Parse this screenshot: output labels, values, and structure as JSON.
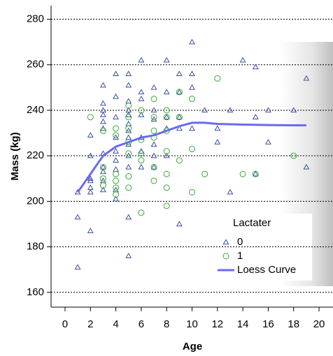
{
  "chart_data": {
    "type": "scatter",
    "x_label": "Age",
    "y_label": "Mass (kg)",
    "legend_title": "Lactater",
    "xlim": [
      -1.1,
      21.1
    ],
    "ylim": [
      153.5,
      286
    ],
    "xticks": [
      0,
      2,
      4,
      6,
      8,
      10,
      12,
      14,
      16,
      18,
      20
    ],
    "yticks": [
      160,
      180,
      200,
      220,
      240,
      260,
      280
    ],
    "grid": true,
    "series": [
      {
        "name": "0",
        "marker": "triangle",
        "color": "#3d4fa3",
        "x": [
          1,
          1,
          1,
          2,
          2,
          2,
          2,
          2,
          2,
          2,
          3,
          3,
          3,
          3,
          3,
          3,
          3,
          3,
          3,
          3,
          3,
          4,
          4,
          4,
          4,
          4,
          4,
          4,
          4,
          4,
          5,
          5,
          5,
          5,
          5,
          5,
          5,
          5,
          5,
          5,
          5,
          5,
          5,
          6,
          6,
          6,
          6,
          6,
          6,
          6,
          7,
          7,
          7,
          7,
          7,
          7,
          8,
          8,
          8,
          8,
          8,
          9,
          9,
          9,
          9,
          9,
          10,
          10,
          10,
          10,
          11,
          12,
          12,
          13,
          13,
          14,
          15,
          15,
          15,
          16,
          16,
          18,
          19,
          19
        ],
        "values": [
          171,
          193,
          204,
          187,
          204,
          206,
          209,
          210,
          220,
          229,
          205,
          209,
          213,
          215,
          221,
          232,
          235,
          238,
          240,
          243,
          251,
          201,
          205,
          214,
          218,
          222,
          228,
          237,
          246,
          256,
          176,
          193,
          215,
          220,
          225,
          228,
          231,
          234,
          238,
          240,
          244,
          251,
          256,
          215,
          222,
          228,
          238,
          245,
          248,
          262,
          215,
          220,
          225,
          236,
          240,
          250,
          220,
          232,
          237,
          248,
          262,
          190,
          232,
          237,
          248,
          256,
          232,
          250,
          256,
          270,
          240,
          226,
          232,
          204,
          240,
          262,
          212,
          237,
          259,
          226,
          240,
          240,
          215,
          254
        ]
      },
      {
        "name": "1",
        "marker": "circle",
        "color": "#3aab3a",
        "x": [
          2,
          3,
          3,
          3,
          3,
          4,
          4,
          4,
          4,
          4,
          4,
          5,
          5,
          5,
          5,
          5,
          5,
          5,
          6,
          6,
          6,
          6,
          6,
          7,
          7,
          7,
          7,
          7,
          7,
          8,
          8,
          8,
          8,
          8,
          8,
          8,
          9,
          9,
          9,
          10,
          10,
          10,
          11,
          12,
          14,
          15,
          18
        ],
        "values": [
          237,
          207,
          210,
          215,
          231,
          203,
          206,
          209,
          212,
          229,
          232,
          206,
          211,
          221,
          226,
          232,
          237,
          242,
          195,
          218,
          221,
          227,
          240,
          209,
          215,
          228,
          231,
          237,
          245,
          198,
          206,
          212,
          222,
          231,
          237,
          240,
          218,
          237,
          248,
          204,
          223,
          245,
          212,
          254,
          212,
          212,
          220
        ]
      },
      {
        "name": "Loess Curve",
        "marker": "line",
        "color": "#6a6af0",
        "x": [
          1,
          2,
          3,
          4,
          5,
          6,
          7,
          8,
          9,
          10,
          11,
          12,
          14,
          16,
          18,
          19
        ],
        "values": [
          204,
          212,
          220,
          224,
          226,
          228,
          229,
          231,
          233,
          234.5,
          234.5,
          234,
          233.7,
          233.5,
          233.4,
          233.4
        ]
      }
    ]
  }
}
